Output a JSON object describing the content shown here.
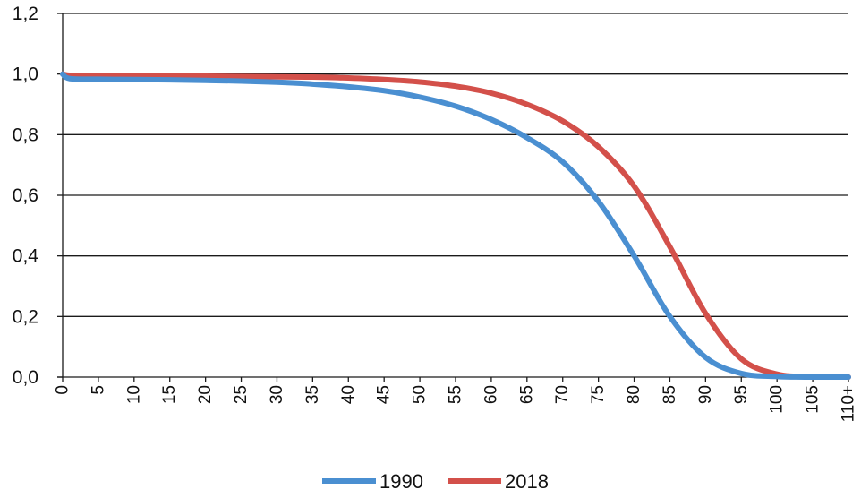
{
  "chart_data": {
    "type": "line",
    "title": "",
    "xlabel": "",
    "ylabel": "",
    "ylim": [
      0,
      1.2
    ],
    "yticks": [
      "0,0",
      "0,2",
      "0,4",
      "0,6",
      "0,8",
      "1,0",
      "1,2"
    ],
    "ytick_values": [
      0,
      0.2,
      0.4,
      0.6,
      0.8,
      1.0,
      1.2
    ],
    "xticks": [
      "0",
      "5",
      "10",
      "15",
      "20",
      "25",
      "30",
      "35",
      "40",
      "45",
      "50",
      "55",
      "60",
      "65",
      "70",
      "75",
      "80",
      "85",
      "90",
      "95",
      "100",
      "105",
      "110+"
    ],
    "x": [
      0,
      1,
      5,
      10,
      15,
      20,
      25,
      30,
      35,
      40,
      45,
      50,
      55,
      60,
      65,
      70,
      75,
      80,
      85,
      90,
      95,
      100,
      105,
      110
    ],
    "grid": "horizontal",
    "legend_position": "bottom",
    "series": [
      {
        "name": "1990",
        "color": "#4a8fd1",
        "values": [
          1.0,
          0.985,
          0.983,
          0.982,
          0.981,
          0.979,
          0.977,
          0.973,
          0.967,
          0.958,
          0.945,
          0.924,
          0.894,
          0.85,
          0.79,
          0.71,
          0.58,
          0.4,
          0.2,
          0.065,
          0.012,
          0.002,
          0.0,
          0.0
        ]
      },
      {
        "name": "2018",
        "color": "#d3504a",
        "values": [
          1.0,
          0.996,
          0.995,
          0.995,
          0.994,
          0.993,
          0.992,
          0.991,
          0.99,
          0.987,
          0.982,
          0.974,
          0.96,
          0.937,
          0.9,
          0.845,
          0.76,
          0.63,
          0.43,
          0.21,
          0.06,
          0.01,
          0.001,
          0.0
        ]
      }
    ]
  }
}
